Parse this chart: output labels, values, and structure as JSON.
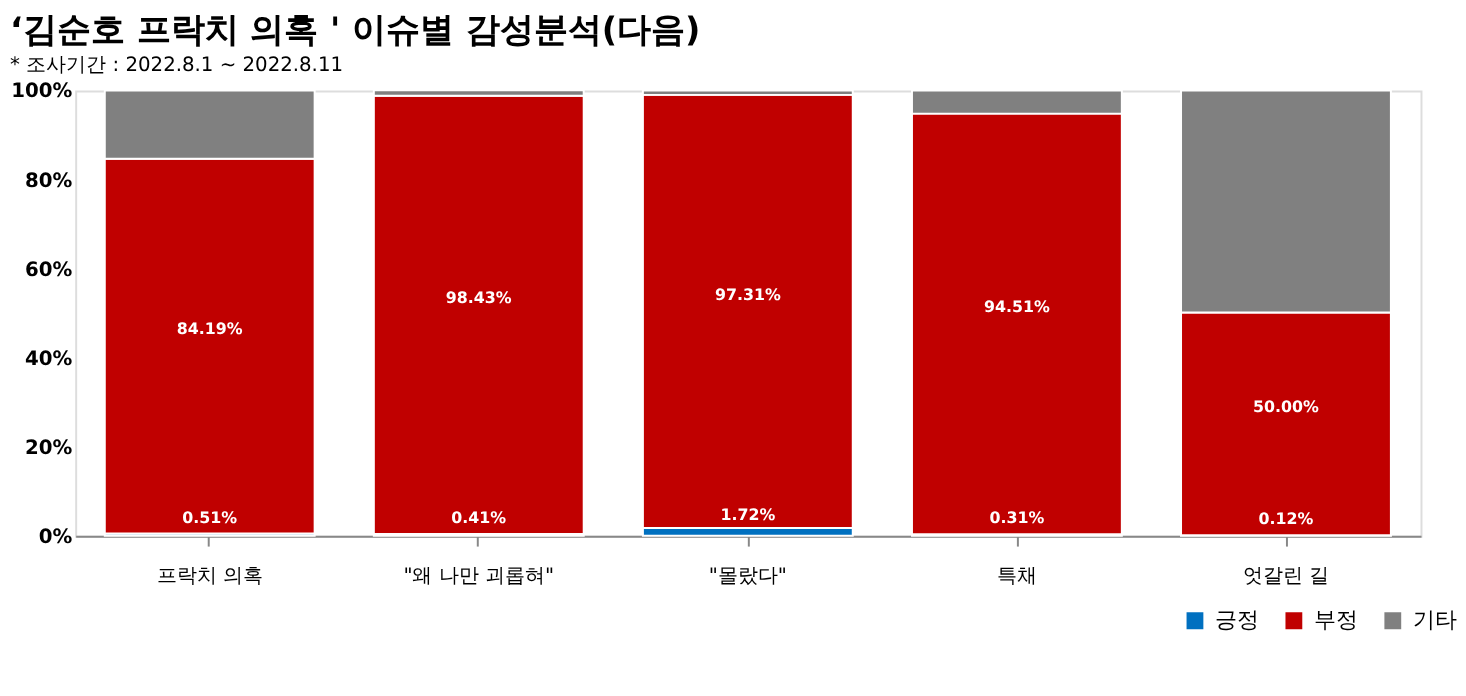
{
  "chart_data": {
    "type": "bar",
    "title": "‘김순호 프락치 의혹 ' 이슈별 감성분석(다음)",
    "annotations": [
      "* 조사기간 : 2022.8.1 ~ 2022.8.11"
    ],
    "categories": [
      "프락치 의혹",
      "\"왜 나만 괴롭혀\"",
      "\"몰랐다\"",
      "특채",
      "엇갈린 길"
    ],
    "stacked": true,
    "ylim": [
      0,
      100
    ],
    "yticks": [
      {
        "value": 0,
        "label": "0%"
      },
      {
        "value": 20,
        "label": "20%"
      },
      {
        "value": 40,
        "label": "40%"
      },
      {
        "value": 60,
        "label": "60%"
      },
      {
        "value": 80,
        "label": "80%"
      },
      {
        "value": 100,
        "label": "100%"
      }
    ],
    "grid": false,
    "legend": "bottom right",
    "series": [
      {
        "name": "긍정",
        "color": "#0070c0",
        "values": [
          0.51,
          0.41,
          1.72,
          0.31,
          0.12
        ],
        "value_labels": [
          "0.51%",
          "0.41%",
          "1.72%",
          "0.31%",
          "0.12%"
        ]
      },
      {
        "name": "부정",
        "color": "#c00000",
        "values": [
          84.19,
          98.43,
          97.31,
          94.51,
          50.0
        ],
        "value_labels": [
          "84.19%",
          "98.43%",
          "97.31%",
          "94.51%",
          "50.00%"
        ]
      },
      {
        "name": "기타",
        "color": "#808080",
        "values": [
          15.3,
          1.2,
          1.0,
          5.2,
          49.9
        ]
      }
    ]
  }
}
